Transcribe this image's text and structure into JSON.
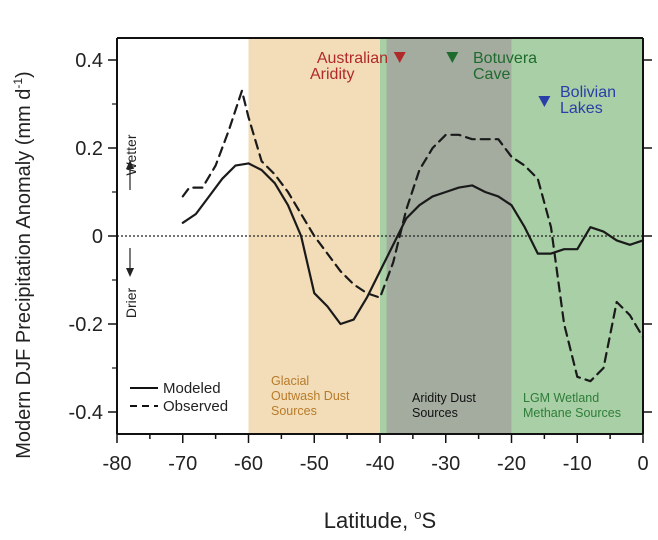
{
  "chart_data": {
    "type": "line",
    "xlabel": "Latitude, ",
    "xlabel_sup": "o",
    "xlabel_unit": "S",
    "ylabel": "Modern DJF Precipitation Anomaly (mm d",
    "ylabel_sup": "-1",
    "ylabel_close": ")",
    "xlim": [
      -80,
      0
    ],
    "ylim": [
      -0.45,
      0.45
    ],
    "x_ticks": [
      -80,
      -70,
      -60,
      -50,
      -40,
      -30,
      -20,
      -10,
      0
    ],
    "y_ticks": [
      0.4,
      0.2,
      0,
      -0.2,
      -0.4
    ],
    "y_tick_labels": [
      "0.4",
      "0.2",
      "0",
      "-0.2",
      "-0.4"
    ],
    "wetter_label": "Wetter",
    "drier_label": "Drier",
    "regions": [
      {
        "name": "glacial",
        "x0": -60,
        "x1": -40,
        "color": "#f2ddb8",
        "label_lines": [
          "Glacial",
          "Outwash Dust",
          "Sources"
        ],
        "label_color": "#b77b2a"
      },
      {
        "name": "lgm",
        "x0": -40,
        "x1": 0,
        "color": "#a8cfa5",
        "label_lines": [
          "LGM Wetland",
          "Methane Sources"
        ],
        "label_color": "#2f7d3a"
      },
      {
        "name": "aridity",
        "x0": -39,
        "x1": -20,
        "color": "#a3ac9f",
        "label_lines": [
          "Aridity Dust",
          "Sources"
        ],
        "label_color": "#111111"
      }
    ],
    "site_markers": [
      {
        "lines": [
          "Australian",
          "Aridity"
        ],
        "x": -37,
        "color": "#b02a2a"
      },
      {
        "lines": [
          "Botuvera",
          "Cave"
        ],
        "x": -29,
        "color": "#1f6b2e"
      },
      {
        "lines": [
          "Bolivian",
          "Lakes"
        ],
        "x": -15,
        "color": "#2a3ea8"
      }
    ],
    "series": [
      {
        "name": "Modeled",
        "style": "solid",
        "x": [
          -70,
          -68,
          -66,
          -64,
          -62,
          -60,
          -58,
          -56,
          -54,
          -52,
          -50,
          -48,
          -46,
          -44,
          -42,
          -40,
          -38,
          -36,
          -34,
          -32,
          -30,
          -28,
          -26,
          -24,
          -22,
          -20,
          -18,
          -16,
          -14,
          -12,
          -10,
          -8,
          -6,
          -4,
          -2,
          0
        ],
        "y": [
          0.03,
          0.05,
          0.09,
          0.13,
          0.16,
          0.165,
          0.15,
          0.12,
          0.07,
          0.0,
          -0.13,
          -0.16,
          -0.2,
          -0.19,
          -0.14,
          -0.08,
          -0.02,
          0.04,
          0.07,
          0.09,
          0.1,
          0.11,
          0.115,
          0.1,
          0.09,
          0.07,
          0.02,
          -0.04,
          -0.04,
          -0.03,
          -0.03,
          0.02,
          0.01,
          -0.01,
          -0.02,
          -0.01
        ]
      },
      {
        "name": "Observed",
        "style": "dashed",
        "x": [
          -70,
          -69,
          -67,
          -65,
          -63,
          -61,
          -60,
          -58,
          -56,
          -54,
          -52,
          -50,
          -48,
          -46,
          -44,
          -42,
          -40,
          -38,
          -36,
          -34,
          -32,
          -30,
          -28,
          -26,
          -24,
          -22,
          -20,
          -18,
          -16,
          -14,
          -12,
          -10,
          -8,
          -6,
          -4,
          -2,
          0
        ],
        "y": [
          0.09,
          0.11,
          0.11,
          0.16,
          0.24,
          0.33,
          0.27,
          0.17,
          0.14,
          0.1,
          0.05,
          0.0,
          -0.04,
          -0.08,
          -0.11,
          -0.13,
          -0.14,
          -0.06,
          0.06,
          0.15,
          0.2,
          0.23,
          0.23,
          0.22,
          0.22,
          0.22,
          0.18,
          0.16,
          0.13,
          0.02,
          -0.2,
          -0.32,
          -0.33,
          -0.3,
          -0.15,
          -0.18,
          -0.23
        ]
      }
    ],
    "legend": {
      "position": "bottom-left"
    }
  }
}
